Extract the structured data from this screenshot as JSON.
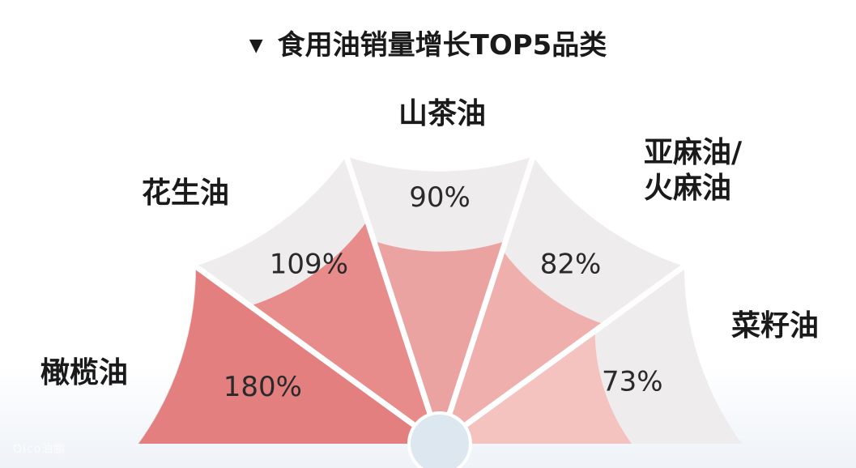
{
  "title": "食用油销量增长TOP5品类",
  "title_marker": "▼",
  "watermark": "Olco油脂",
  "chart_data": {
    "type": "polar-area",
    "title": "食用油销量增长TOP5品类",
    "unit": "%",
    "categories": [
      "橄榄油",
      "花生油",
      "山茶油",
      "亚麻油/火麻油",
      "菜籽油"
    ],
    "label_lines": [
      [
        "橄榄油"
      ],
      [
        "花生油"
      ],
      [
        "山茶油"
      ],
      [
        "亚麻油/",
        "火麻油"
      ],
      [
        "菜籽油"
      ]
    ],
    "values": [
      180,
      109,
      90,
      82,
      73
    ],
    "value_labels": [
      "180%",
      "109%",
      "90%",
      "82%",
      "73%"
    ],
    "colors": [
      "#e47f80",
      "#e88c8b",
      "#eba3a1",
      "#efb0ad",
      "#f4c3c0"
    ],
    "background_color": "#efeced",
    "hub_color": "#dde7f0"
  }
}
